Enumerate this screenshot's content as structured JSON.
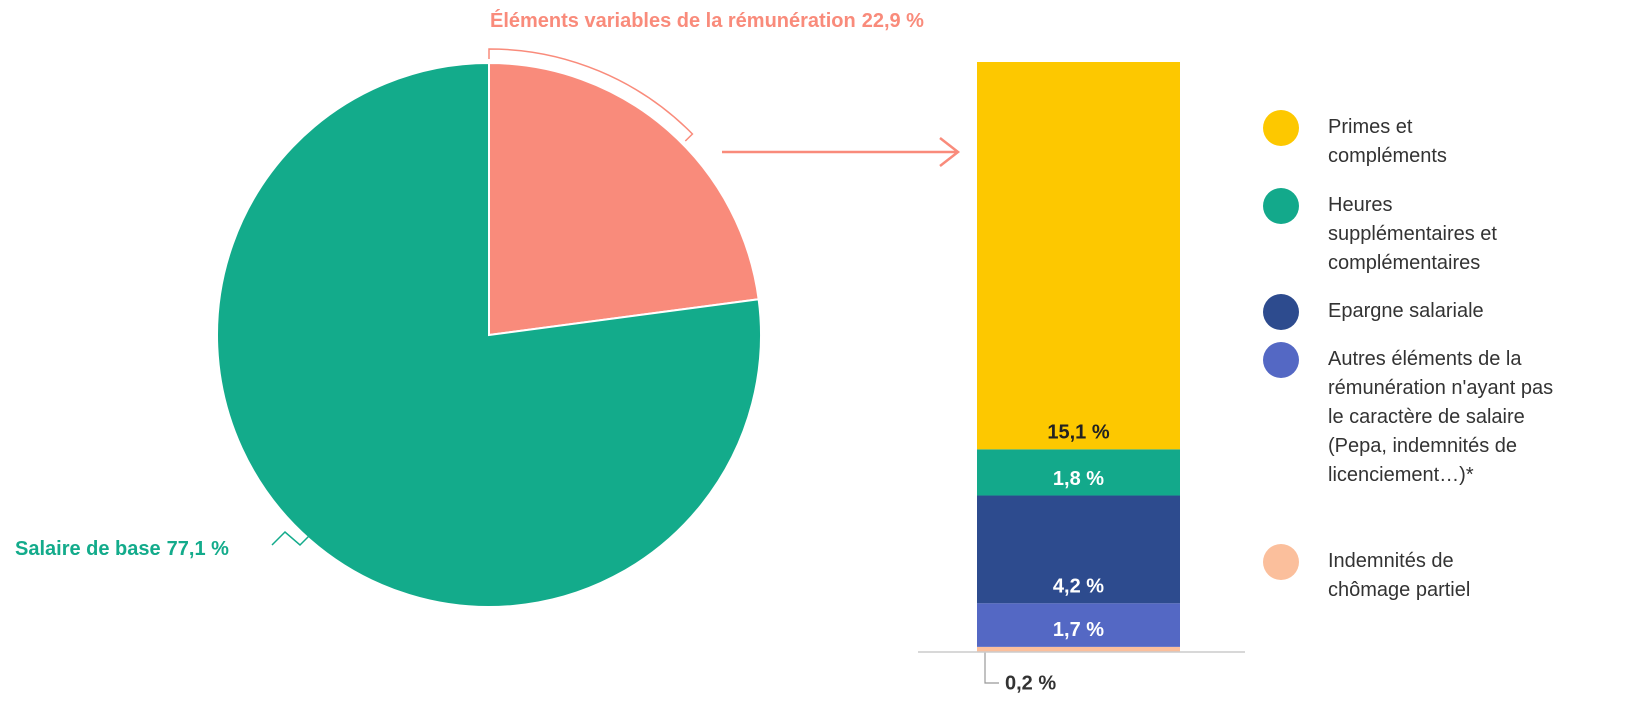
{
  "chart_data": [
    {
      "type": "pie",
      "categories": [
        "Salaire de base",
        "Éléments variables de la rémunération"
      ],
      "values": [
        77.1,
        22.9
      ],
      "value_labels": [
        "77,1 %",
        "22,9 %"
      ],
      "colors": [
        "#13ab8b",
        "#f98b7b"
      ]
    },
    {
      "type": "stacked_bar",
      "series": [
        {
          "name": "Primes et compléments",
          "color": "#fdc800",
          "values": [
            15.1
          ],
          "value_labels": [
            "15,1 %"
          ]
        },
        {
          "name": "Heures supplémentaires et complémentaires",
          "color": "#13a98b",
          "values": [
            1.8
          ],
          "value_labels": [
            "1,8 %"
          ]
        },
        {
          "name": "Epargne salariale",
          "color": "#2d4b8e",
          "values": [
            4.2
          ],
          "value_labels": [
            "4,2 %"
          ]
        },
        {
          "name": "Autres éléments de la rémunération n'ayant pas le caractère de salaire (Pepa, indemnités de licenciement…)*",
          "color": "#5468c4",
          "values": [
            1.7
          ],
          "value_labels": [
            "1,7 %"
          ]
        },
        {
          "name": "Indemnités de chômage partiel",
          "color": "#fbbf9c",
          "values": [
            0.2
          ],
          "value_labels": [
            "0,2 %"
          ]
        }
      ]
    }
  ]
}
